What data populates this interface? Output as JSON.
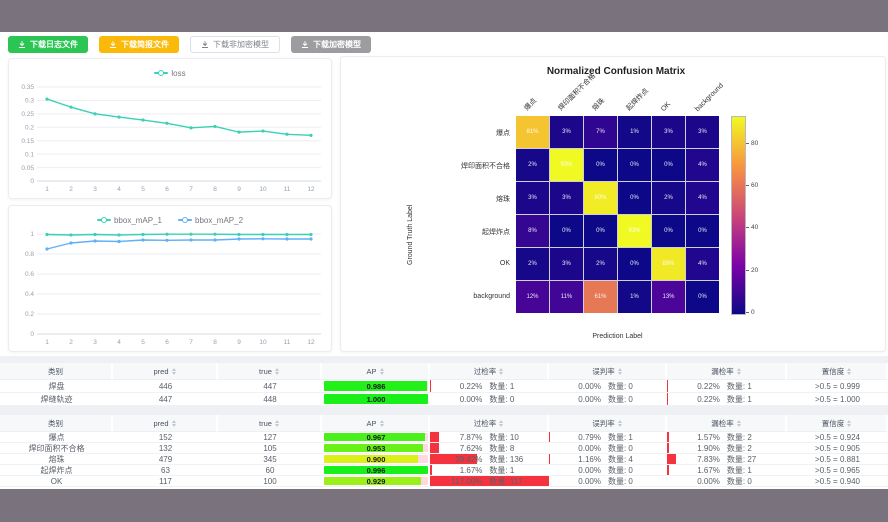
{
  "theme": {
    "band": "#7a727c",
    "teal": "#3ad1b5",
    "blue": "#5fb0f6",
    "red_bar": "#f5333f",
    "green_button": "#2bc553",
    "orange_button": "#fbb90a",
    "gray_button": "#9d9da1"
  },
  "toolbar": {
    "buttons": [
      {
        "label": "下载日志文件",
        "variant": "green"
      },
      {
        "label": "下载简报文件",
        "variant": "orange"
      },
      {
        "label": "下载非加密模型",
        "variant": "plain"
      },
      {
        "label": "下载加密模型",
        "variant": "gray"
      }
    ]
  },
  "chart_data": [
    {
      "type": "line",
      "title": "loss",
      "x": [
        1,
        2,
        3,
        4,
        5,
        6,
        7,
        8,
        9,
        10,
        11,
        12
      ],
      "series": [
        {
          "name": "loss",
          "color": "#3ad1b5",
          "values": [
            0.305,
            0.275,
            0.25,
            0.238,
            0.227,
            0.215,
            0.198,
            0.203,
            0.182,
            0.186,
            0.174,
            0.17
          ]
        }
      ],
      "ylim": [
        0,
        0.35
      ],
      "ytick_step": 0.05,
      "grid": true,
      "legend_position": "top"
    },
    {
      "type": "line",
      "title": "bbox_mAP",
      "x": [
        1,
        2,
        3,
        4,
        5,
        6,
        7,
        8,
        9,
        10,
        11,
        12
      ],
      "series": [
        {
          "name": "bbox_mAP_1",
          "color": "#3ad1b5",
          "values": [
            0.995,
            0.99,
            0.995,
            0.99,
            0.995,
            0.998,
            0.998,
            0.998,
            0.995,
            0.995,
            0.995,
            0.995
          ]
        },
        {
          "name": "bbox_mAP_2",
          "color": "#5fb0f6",
          "values": [
            0.85,
            0.91,
            0.93,
            0.925,
            0.94,
            0.937,
            0.94,
            0.94,
            0.95,
            0.952,
            0.95,
            0.95
          ]
        }
      ],
      "ylim": [
        0,
        1
      ],
      "ytick_step": 0.2,
      "grid": true,
      "legend_position": "top"
    },
    {
      "type": "heatmap",
      "title": "Normalized Confusion Matrix",
      "xlabel": "Prediction Label",
      "ylabel": "Ground Truth Label",
      "labels": [
        "爆点",
        "焊印面积不合格",
        "熔珠",
        "起焊炸点",
        "OK",
        "background"
      ],
      "matrix_percent": [
        [
          81,
          3,
          7,
          1,
          3,
          3
        ],
        [
          2,
          93,
          0,
          0,
          0,
          4
        ],
        [
          3,
          3,
          90,
          0,
          2,
          4
        ],
        [
          8,
          0,
          0,
          93,
          0,
          0
        ],
        [
          2,
          3,
          2,
          0,
          89,
          4
        ],
        [
          12,
          11,
          61,
          1,
          13,
          0
        ]
      ],
      "vmax": 93,
      "colorbar_ticks": [
        0,
        20,
        40,
        60,
        80
      ],
      "colormap": "plasma"
    }
  ],
  "tables": {
    "count_label": "数量:",
    "headers": [
      {
        "label": "类别",
        "sortable": false
      },
      {
        "label": "pred",
        "sortable": true
      },
      {
        "label": "true",
        "sortable": true
      },
      {
        "label": "AP",
        "sortable": true
      },
      {
        "label": "过检率",
        "sortable": true
      },
      {
        "label": "误判率",
        "sortable": true
      },
      {
        "label": "漏检率",
        "sortable": true
      },
      {
        "label": "置信度",
        "sortable": true
      }
    ],
    "table1_rows": [
      {
        "cls": "焊盘",
        "pred": "446",
        "true": "447",
        "ap": "0.986",
        "over_pct": "0.22%",
        "over_cnt": "1",
        "mis_pct": "0.00%",
        "mis_cnt": "0",
        "miss_pct": "0.22%",
        "miss_cnt": "1",
        "conf": ">0.5 = 0.999"
      },
      {
        "cls": "焊缝轨迹",
        "pred": "447",
        "true": "448",
        "ap": "1.000",
        "over_pct": "0.00%",
        "over_cnt": "0",
        "mis_pct": "0.00%",
        "mis_cnt": "0",
        "miss_pct": "0.22%",
        "miss_cnt": "1",
        "conf": ">0.5 = 1.000"
      }
    ],
    "table2_rows": [
      {
        "cls": "爆点",
        "pred": "152",
        "true": "127",
        "ap": "0.967",
        "over_pct": "7.87%",
        "over_cnt": "10",
        "mis_pct": "0.79%",
        "mis_cnt": "1",
        "miss_pct": "1.57%",
        "miss_cnt": "2",
        "conf": ">0.5 = 0.924"
      },
      {
        "cls": "焊印面积不合格",
        "pred": "132",
        "true": "105",
        "ap": "0.953",
        "over_pct": "7.62%",
        "over_cnt": "8",
        "mis_pct": "0.00%",
        "mis_cnt": "0",
        "miss_pct": "1.90%",
        "miss_cnt": "2",
        "conf": ">0.5 = 0.905"
      },
      {
        "cls": "熔珠",
        "pred": "479",
        "true": "345",
        "ap": "0.900",
        "over_pct": "39.42%",
        "over_cnt": "136",
        "mis_pct": "1.16%",
        "mis_cnt": "4",
        "miss_pct": "7.83%",
        "miss_cnt": "27",
        "conf": ">0.5 = 0.881"
      },
      {
        "cls": "起焊炸点",
        "pred": "63",
        "true": "60",
        "ap": "0.996",
        "over_pct": "1.67%",
        "over_cnt": "1",
        "mis_pct": "0.00%",
        "mis_cnt": "0",
        "miss_pct": "1.67%",
        "miss_cnt": "1",
        "conf": ">0.5 = 0.965"
      },
      {
        "cls": "OK",
        "pred": "117",
        "true": "100",
        "ap": "0.929",
        "over_pct": "117.00%",
        "over_cnt": "117",
        "mis_pct": "0.00%",
        "mis_cnt": "0",
        "miss_pct": "0.00%",
        "miss_cnt": "0",
        "conf": ">0.5 = 0.940"
      }
    ]
  }
}
